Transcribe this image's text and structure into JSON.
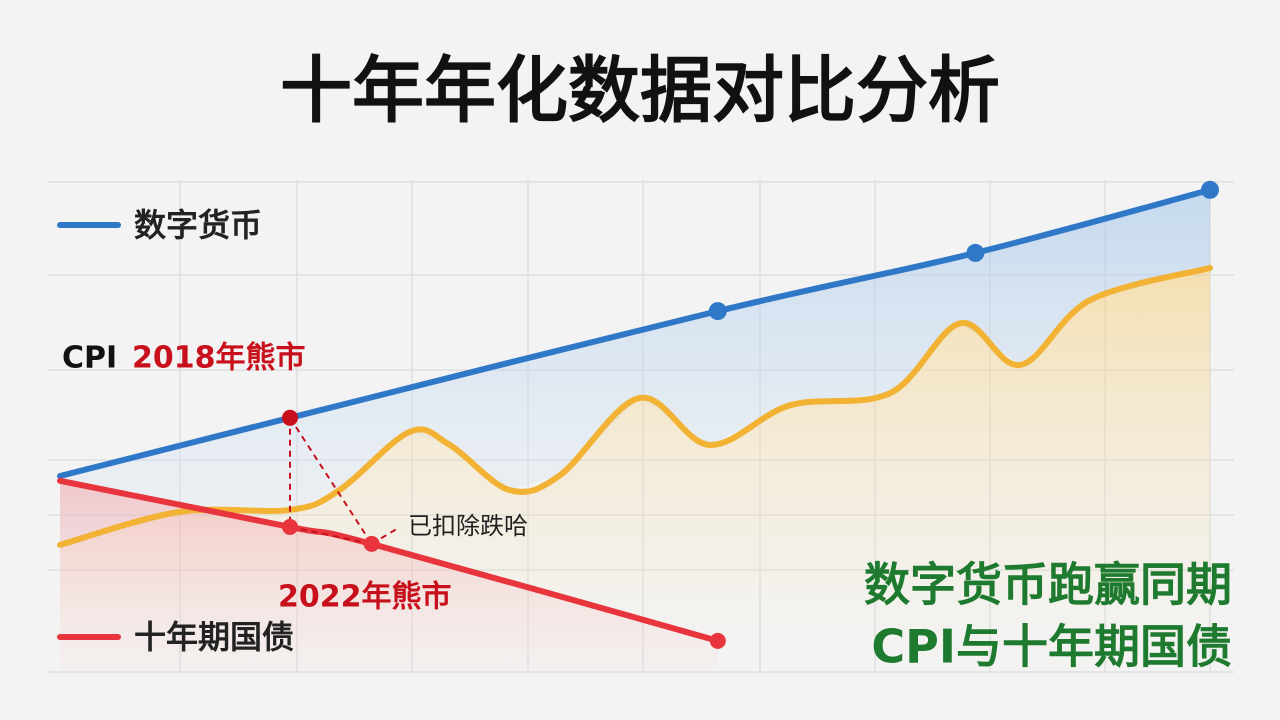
{
  "chart_data": {
    "type": "line",
    "title": "十年年化数据对比分析",
    "xlim": [
      0,
      100
    ],
    "ylim": [
      0,
      100
    ],
    "series": [
      {
        "name": "数字货币",
        "color": "#2f78c8",
        "markers": true,
        "x": [
          0,
          20,
          57.2,
          79.6,
          100
        ],
        "values": [
          40,
          52,
          74,
          86,
          99
        ]
      },
      {
        "name": "CPI",
        "color": "#f2b233",
        "markers": false,
        "x": [
          0,
          10.4,
          20,
          24.3,
          30.4,
          33.9,
          39.1,
          43.5,
          50.4,
          56.5,
          63.5,
          72.2,
          78.3,
          83.5,
          89.6,
          100
        ],
        "values": [
          25.8,
          32.6,
          33,
          37.1,
          49.1,
          46.4,
          37.1,
          40.2,
          56.1,
          46.4,
          54.6,
          57.1,
          71.5,
          62.9,
          76.3,
          82.9
        ]
      },
      {
        "name": "十年期国债",
        "color": "#e8343c",
        "markers": true,
        "x": [
          0,
          20,
          27.1,
          57.2
        ],
        "values": [
          39,
          29.5,
          26,
          6
        ]
      }
    ],
    "annotation_color": "#c8101c",
    "annotations": [
      "2018年熊市",
      "2022年熊市",
      "已扣除跌哈"
    ],
    "callout": [
      "数字货币跑赢同期",
      "CPI与十年期国债"
    ],
    "callout_color": "#1e7a2e"
  }
}
